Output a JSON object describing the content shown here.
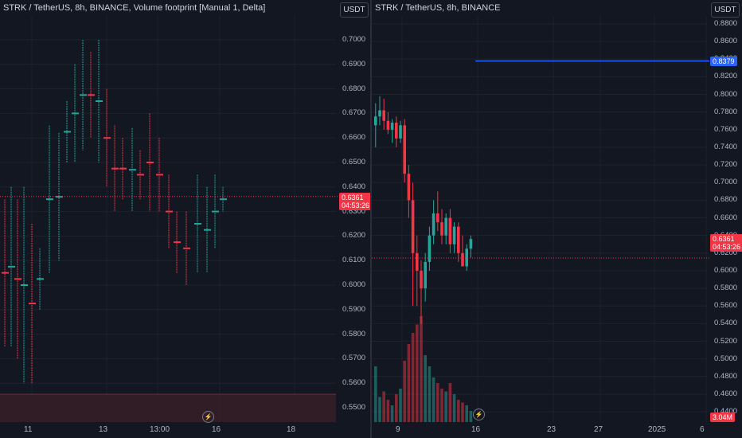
{
  "left": {
    "title": "STRK / TetherUS, 8h, BINANCE, Volume footprint [Manual 1, Delta]",
    "currency_button": "USDT",
    "y_ticks": [
      "0.7000",
      "0.6900",
      "0.6800",
      "0.6700",
      "0.6600",
      "0.6500",
      "0.6400",
      "0.6300",
      "0.6200",
      "0.6100",
      "0.6000",
      "0.5900",
      "0.5800",
      "0.5700",
      "0.5600",
      "0.5500"
    ],
    "x_ticks": [
      "11",
      "13",
      "13:00",
      "16",
      "18"
    ],
    "last_price": "0.6361",
    "countdown": "04:53:26"
  },
  "right": {
    "title": "STRK / TetherUS, 8h, BINANCE",
    "currency_button": "USDT",
    "y_ticks": [
      "0.8800",
      "0.8600",
      "0.8400",
      "0.8200",
      "0.8000",
      "0.7800",
      "0.7600",
      "0.7400",
      "0.7200",
      "0.7000",
      "0.6800",
      "0.6600",
      "0.6400",
      "0.6200",
      "0.6000",
      "0.5800",
      "0.5600",
      "0.5400",
      "0.5200",
      "0.5000",
      "0.4800",
      "0.4600",
      "0.4400"
    ],
    "x_ticks": [
      "9",
      "16",
      "23",
      "27",
      "2025",
      "6"
    ],
    "last_price": "0.6361",
    "countdown": "04:53:26",
    "level_price": "0.8379",
    "volume_tag": "3.04M"
  },
  "colors": {
    "background": "#131722",
    "up": "#26a69a",
    "down": "#f23645",
    "level_line": "#2962ff",
    "grid": "#1e222d"
  },
  "chart_data": {
    "type": "candlestick",
    "title": "STRK / TetherUS, 8h, BINANCE",
    "y_range": [
      0.43,
      0.89
    ],
    "ohlc": [
      {
        "o": 0.765,
        "h": 0.79,
        "l": 0.74,
        "c": 0.775
      },
      {
        "o": 0.775,
        "h": 0.798,
        "l": 0.765,
        "c": 0.782
      },
      {
        "o": 0.782,
        "h": 0.795,
        "l": 0.76,
        "c": 0.77
      },
      {
        "o": 0.77,
        "h": 0.78,
        "l": 0.755,
        "c": 0.76
      },
      {
        "o": 0.76,
        "h": 0.772,
        "l": 0.745,
        "c": 0.768
      },
      {
        "o": 0.768,
        "h": 0.775,
        "l": 0.74,
        "c": 0.75
      },
      {
        "o": 0.75,
        "h": 0.77,
        "l": 0.745,
        "c": 0.765
      },
      {
        "o": 0.765,
        "h": 0.772,
        "l": 0.7,
        "c": 0.71
      },
      {
        "o": 0.71,
        "h": 0.72,
        "l": 0.66,
        "c": 0.68
      },
      {
        "o": 0.68,
        "h": 0.7,
        "l": 0.56,
        "c": 0.62
      },
      {
        "o": 0.62,
        "h": 0.64,
        "l": 0.56,
        "c": 0.6
      },
      {
        "o": 0.6,
        "h": 0.612,
        "l": 0.54,
        "c": 0.58
      },
      {
        "o": 0.58,
        "h": 0.62,
        "l": 0.565,
        "c": 0.61
      },
      {
        "o": 0.61,
        "h": 0.65,
        "l": 0.6,
        "c": 0.64
      },
      {
        "o": 0.64,
        "h": 0.68,
        "l": 0.63,
        "c": 0.665
      },
      {
        "o": 0.665,
        "h": 0.69,
        "l": 0.645,
        "c": 0.655
      },
      {
        "o": 0.655,
        "h": 0.67,
        "l": 0.63,
        "c": 0.64
      },
      {
        "o": 0.64,
        "h": 0.665,
        "l": 0.63,
        "c": 0.66
      },
      {
        "o": 0.66,
        "h": 0.67,
        "l": 0.62,
        "c": 0.63
      },
      {
        "o": 0.63,
        "h": 0.655,
        "l": 0.62,
        "c": 0.65
      },
      {
        "o": 0.65,
        "h": 0.655,
        "l": 0.61,
        "c": 0.62
      },
      {
        "o": 0.62,
        "h": 0.64,
        "l": 0.605,
        "c": 0.605
      },
      {
        "o": 0.605,
        "h": 0.63,
        "l": 0.6,
        "c": 0.625
      },
      {
        "o": 0.625,
        "h": 0.64,
        "l": 0.615,
        "c": 0.636
      }
    ],
    "volume": [
      1.0,
      0.45,
      0.55,
      0.4,
      0.3,
      0.5,
      0.6,
      1.1,
      1.4,
      1.6,
      1.75,
      1.9,
      1.2,
      1.0,
      0.8,
      0.7,
      0.6,
      0.55,
      0.7,
      0.5,
      0.4,
      0.35,
      0.3,
      0.2
    ]
  }
}
